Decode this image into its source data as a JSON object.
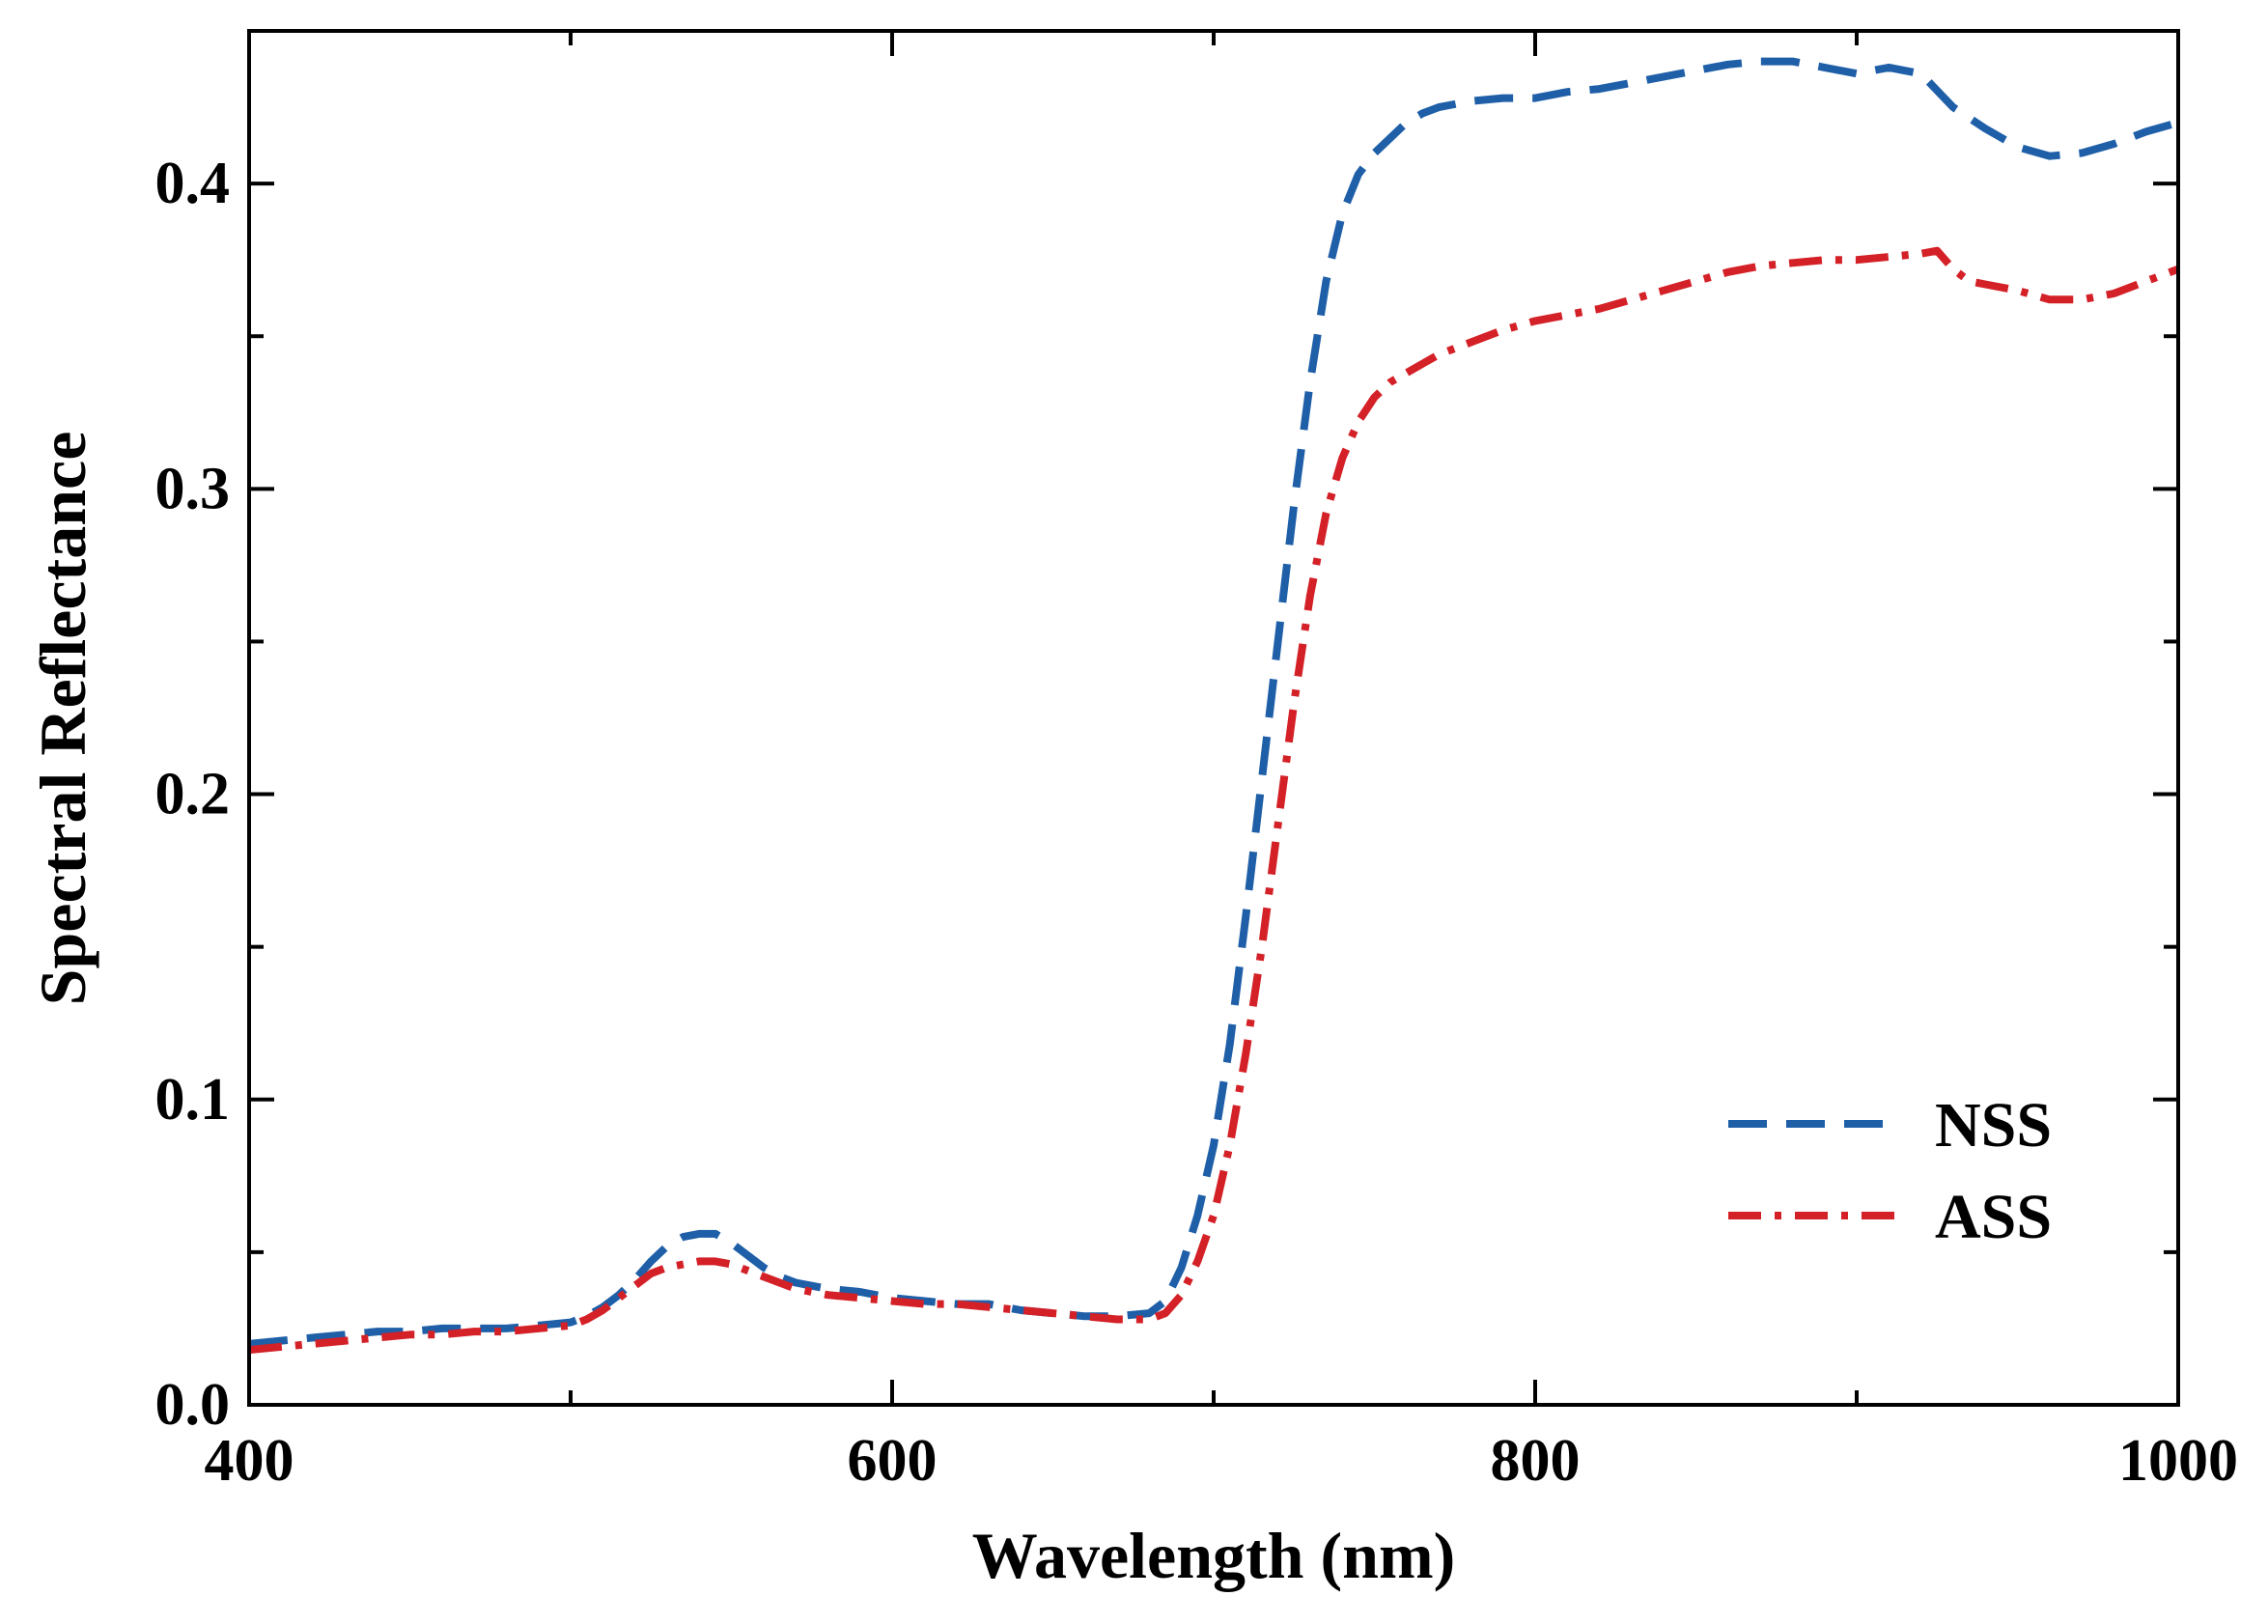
{
  "chart_data": {
    "type": "line",
    "title": "",
    "xlabel": "Wavelength (nm)",
    "ylabel": "Spectral Reflectance",
    "xlim": [
      400,
      1000
    ],
    "ylim": [
      0.0,
      0.45
    ],
    "xticks": [
      400,
      600,
      800,
      1000
    ],
    "xtick_labels": [
      "400",
      "600",
      "800",
      "1000"
    ],
    "xminor": [
      500,
      700,
      900
    ],
    "yticks": [
      0.0,
      0.1,
      0.2,
      0.3,
      0.4
    ],
    "ytick_labels": [
      "0.0",
      "0.1",
      "0.2",
      "0.3",
      "0.4"
    ],
    "yminor": [
      0.05,
      0.15,
      0.25,
      0.35
    ],
    "grid": false,
    "legend_position": "bottom-right",
    "series": [
      {
        "name": "NSS",
        "color": "#1f5fa8",
        "style": "dashed",
        "x": [
          400,
          410,
          420,
          430,
          440,
          450,
          460,
          470,
          480,
          490,
          500,
          505,
          510,
          515,
          520,
          525,
          530,
          535,
          540,
          545,
          550,
          555,
          560,
          565,
          570,
          575,
          580,
          590,
          600,
          610,
          620,
          630,
          640,
          650,
          660,
          670,
          680,
          685,
          690,
          695,
          700,
          705,
          710,
          715,
          720,
          725,
          730,
          735,
          740,
          745,
          750,
          755,
          760,
          765,
          770,
          780,
          790,
          800,
          810,
          820,
          830,
          840,
          850,
          860,
          870,
          880,
          890,
          900,
          910,
          920,
          930,
          940,
          950,
          960,
          970,
          980,
          990,
          1000
        ],
        "values": [
          0.02,
          0.021,
          0.022,
          0.023,
          0.024,
          0.024,
          0.025,
          0.025,
          0.025,
          0.026,
          0.027,
          0.029,
          0.032,
          0.036,
          0.041,
          0.047,
          0.052,
          0.055,
          0.056,
          0.056,
          0.053,
          0.049,
          0.045,
          0.042,
          0.04,
          0.039,
          0.038,
          0.037,
          0.035,
          0.034,
          0.033,
          0.033,
          0.031,
          0.03,
          0.029,
          0.029,
          0.03,
          0.034,
          0.045,
          0.062,
          0.085,
          0.118,
          0.16,
          0.205,
          0.25,
          0.295,
          0.335,
          0.368,
          0.39,
          0.403,
          0.41,
          0.415,
          0.42,
          0.423,
          0.425,
          0.427,
          0.428,
          0.428,
          0.43,
          0.431,
          0.433,
          0.435,
          0.437,
          0.439,
          0.44,
          0.44,
          0.438,
          0.436,
          0.438,
          0.436,
          0.425,
          0.418,
          0.412,
          0.409,
          0.41,
          0.413,
          0.417,
          0.42
        ]
      },
      {
        "name": "ASS",
        "color": "#d42027",
        "style": "dashdot",
        "x": [
          400,
          410,
          420,
          430,
          440,
          450,
          460,
          470,
          480,
          490,
          500,
          505,
          510,
          515,
          520,
          525,
          530,
          535,
          540,
          545,
          550,
          555,
          560,
          565,
          570,
          575,
          580,
          590,
          600,
          610,
          620,
          630,
          640,
          650,
          660,
          670,
          680,
          685,
          690,
          695,
          700,
          705,
          710,
          715,
          720,
          725,
          730,
          735,
          740,
          745,
          750,
          755,
          760,
          765,
          770,
          780,
          790,
          800,
          810,
          820,
          830,
          840,
          850,
          860,
          870,
          880,
          890,
          900,
          910,
          920,
          925,
          930,
          935,
          940,
          950,
          960,
          970,
          980,
          990,
          1000
        ],
        "values": [
          0.018,
          0.019,
          0.02,
          0.021,
          0.022,
          0.023,
          0.023,
          0.024,
          0.024,
          0.025,
          0.026,
          0.028,
          0.031,
          0.035,
          0.039,
          0.043,
          0.045,
          0.046,
          0.047,
          0.047,
          0.046,
          0.044,
          0.042,
          0.04,
          0.038,
          0.037,
          0.036,
          0.035,
          0.034,
          0.033,
          0.033,
          0.032,
          0.031,
          0.03,
          0.029,
          0.028,
          0.028,
          0.03,
          0.036,
          0.047,
          0.062,
          0.085,
          0.115,
          0.15,
          0.19,
          0.23,
          0.265,
          0.292,
          0.31,
          0.322,
          0.33,
          0.335,
          0.338,
          0.341,
          0.344,
          0.348,
          0.352,
          0.355,
          0.357,
          0.359,
          0.362,
          0.365,
          0.368,
          0.371,
          0.373,
          0.374,
          0.375,
          0.375,
          0.376,
          0.377,
          0.378,
          0.372,
          0.368,
          0.367,
          0.365,
          0.362,
          0.362,
          0.364,
          0.368,
          0.372
        ]
      }
    ]
  }
}
